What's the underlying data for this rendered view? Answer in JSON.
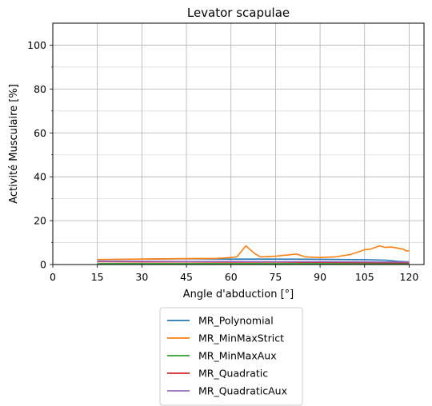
{
  "chart_data": {
    "type": "line",
    "title": "Levator scapulae",
    "xlabel": "Angle d'abduction [°]",
    "ylabel": "Activité Musculaire [%]",
    "xlim": [
      0,
      125
    ],
    "ylim": [
      0,
      110
    ],
    "x_ticks": [
      0,
      15,
      30,
      45,
      60,
      75,
      90,
      105,
      120
    ],
    "x_tick_labels": [
      "0",
      "15",
      "30",
      "45",
      "60",
      "75",
      "90",
      "105",
      "120"
    ],
    "y_ticks": [
      0,
      20,
      40,
      60,
      80,
      100
    ],
    "y_tick_labels": [
      "0",
      "20",
      "40",
      "60",
      "80",
      "100"
    ],
    "y_minor_ticks": [
      10,
      30,
      50,
      70,
      90
    ],
    "grid": true,
    "legend_position": "below-center",
    "series": [
      {
        "name": "MR_Polynomial",
        "color": "#1f77b4",
        "x": [
          15,
          30,
          45,
          60,
          75,
          90,
          105,
          112,
          116,
          120
        ],
        "y": [
          2.2,
          2.5,
          2.6,
          2.5,
          2.5,
          2.4,
          2.2,
          2.0,
          1.5,
          1.2
        ]
      },
      {
        "name": "MR_MinMaxStrict",
        "color": "#ff7f0e",
        "x": [
          15,
          30,
          45,
          55,
          58,
          60,
          62,
          65,
          68,
          70,
          75,
          80,
          82,
          85,
          90,
          95,
          100,
          103,
          105,
          107,
          110,
          112,
          114,
          116,
          118,
          119,
          120
        ],
        "y": [
          2.3,
          2.5,
          2.7,
          2.8,
          3.0,
          3.2,
          3.5,
          8.5,
          5.0,
          3.5,
          3.8,
          4.5,
          4.8,
          3.5,
          3.2,
          3.5,
          4.5,
          5.8,
          6.8,
          7.0,
          8.5,
          7.8,
          8.0,
          7.5,
          7.0,
          6.2,
          6.3
        ]
      },
      {
        "name": "MR_MinMaxAux",
        "color": "#2ca02c",
        "x": [
          15,
          30,
          45,
          60,
          75,
          90,
          105,
          120
        ],
        "y": [
          0.4,
          0.4,
          0.4,
          0.4,
          0.4,
          0.4,
          0.4,
          0.4
        ]
      },
      {
        "name": "MR_Quadratic",
        "color": "#d62728",
        "x": [
          15,
          30,
          45,
          60,
          75,
          90,
          105,
          120
        ],
        "y": [
          1.3,
          1.2,
          1.2,
          1.1,
          1.1,
          1.0,
          0.9,
          0.8
        ]
      },
      {
        "name": "MR_QuadraticAux",
        "color": "#9467bd",
        "x": [
          15,
          30,
          45,
          60,
          75,
          90,
          105,
          120
        ],
        "y": [
          1.5,
          1.5,
          1.4,
          1.4,
          1.3,
          1.3,
          1.2,
          1.1
        ]
      }
    ]
  }
}
